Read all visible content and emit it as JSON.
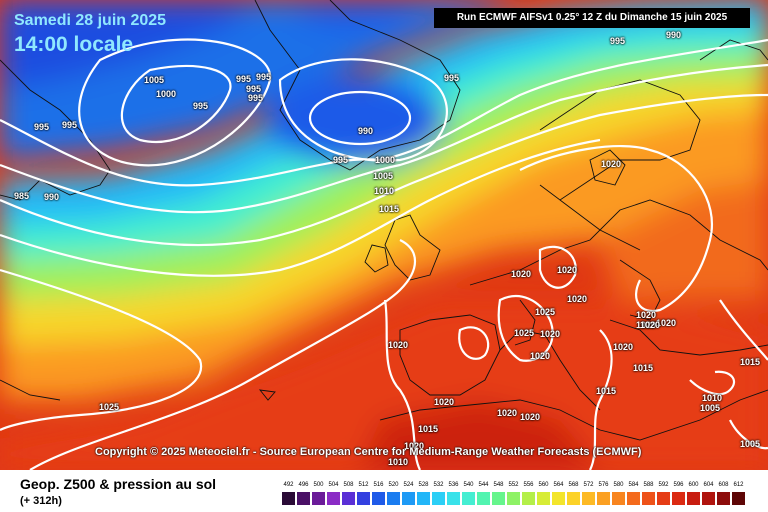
{
  "header": {
    "date": "Samedi 28 juin 2025",
    "local_time": "14:00 locale",
    "run": "Run ECMWF AIFSv1 0.25° 12 Z du Dimanche 15 juin 2025"
  },
  "copyright": "Copyright © 2025 Meteociel.fr - Source European Centre for Medium-Range Weather Forecasts (ECMWF)",
  "footer": {
    "title": "Geop. Z500 & pression au sol",
    "subtitle": "(+ 312h)"
  },
  "pressure_labels": [
    "995",
    "990",
    "1005",
    "1000",
    "995",
    "995",
    "995",
    "995",
    "995",
    "995",
    "995",
    "990",
    "995",
    "985",
    "990",
    "995",
    "1000",
    "1005",
    "1010",
    "1015",
    "1020",
    "1020",
    "1020",
    "1020",
    "1020",
    "1025",
    "1025",
    "1020",
    "1020",
    "1020",
    "1020",
    "1020",
    "1020",
    "1015",
    "1015",
    "1015",
    "1010",
    "1005",
    "1005",
    "1020",
    "1020",
    "1020",
    "1015",
    "1010",
    "1025",
    "1020",
    "1020"
  ],
  "scale": {
    "values": [
      "492",
      "496",
      "500",
      "504",
      "508",
      "512",
      "516",
      "520",
      "524",
      "528",
      "532",
      "536",
      "540",
      "544",
      "548",
      "552",
      "556",
      "560",
      "564",
      "568",
      "572",
      "576",
      "580",
      "584",
      "588",
      "592",
      "596",
      "600",
      "604",
      "608",
      "612"
    ],
    "colors": [
      "#2a0a36",
      "#4a1066",
      "#6b1b99",
      "#8a2bc5",
      "#5a2fd6",
      "#3340e0",
      "#1f5ae8",
      "#1a7cf0",
      "#1e9af5",
      "#22b6f8",
      "#2ccff6",
      "#39e2ea",
      "#45eed2",
      "#52f4b0",
      "#66f58c",
      "#8ef265",
      "#b4ef49",
      "#d7ec36",
      "#f3e52b",
      "#fcd228",
      "#fdba25",
      "#fba022",
      "#f8851f",
      "#f46a1c",
      "#ee5219",
      "#e53c15",
      "#db2a12",
      "#c81d10",
      "#b0140e",
      "#8d0c0b",
      "#5e0606"
    ]
  }
}
